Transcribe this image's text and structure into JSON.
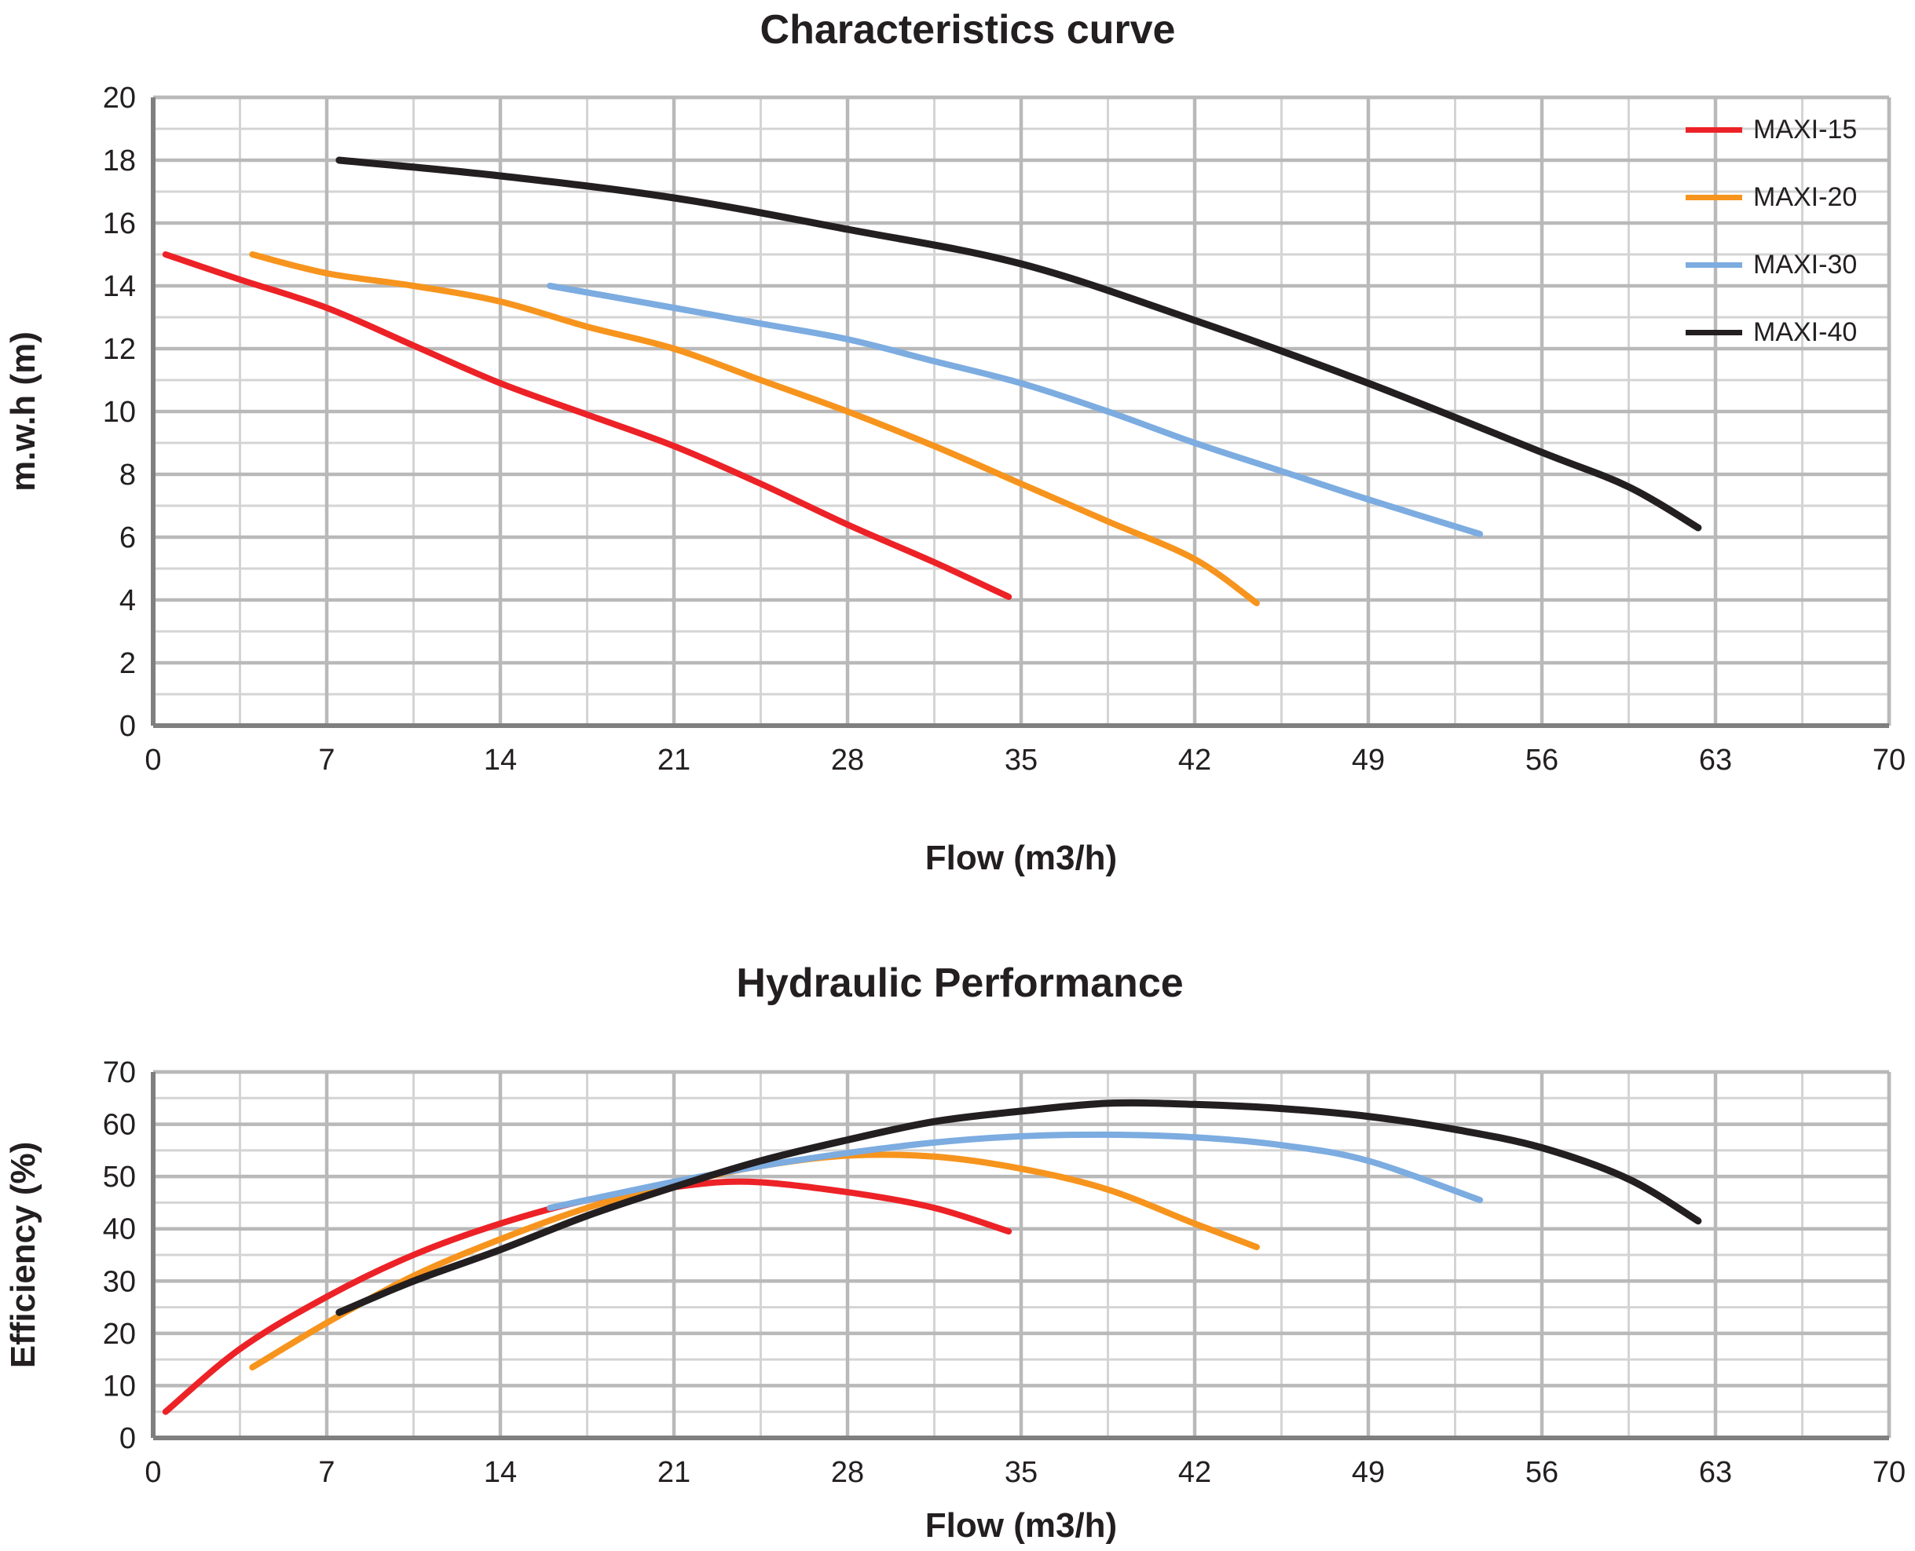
{
  "colors": {
    "background": "#ffffff",
    "grid_minor": "#d4d4d4",
    "grid_major": "#b9b9b9",
    "axis_line": "#7f7f7f",
    "text": "#231f20",
    "maxi15": "#ec2227",
    "maxi20": "#f7941d",
    "maxi30": "#7cace0",
    "maxi40": "#231f20"
  },
  "chart_data": [
    {
      "type": "line",
      "title": "Characteristics curve",
      "xlabel": "Flow (m3/h)",
      "ylabel": "m.w.h (m)",
      "xlim": [
        0,
        70
      ],
      "ylim": [
        0,
        20
      ],
      "x_tick_step": 7,
      "x_minor_step": 3.5,
      "y_tick_step": 2,
      "y_minor_step": 1,
      "grid": true,
      "legend_position": "top-right-inside",
      "legend_visible": true,
      "x_ticks": [
        0,
        7,
        14,
        21,
        28,
        35,
        42,
        49,
        56,
        63,
        70
      ],
      "y_ticks": [
        0,
        2,
        4,
        6,
        8,
        10,
        12,
        14,
        16,
        18,
        20
      ],
      "series": [
        {
          "name": "MAXI-15",
          "color": "#ec2227",
          "points": [
            [
              0.5,
              15.0
            ],
            [
              3.5,
              14.2
            ],
            [
              7,
              13.3
            ],
            [
              10.5,
              12.1
            ],
            [
              14,
              10.9
            ],
            [
              17.5,
              9.9
            ],
            [
              21,
              8.9
            ],
            [
              24.5,
              7.7
            ],
            [
              28,
              6.4
            ],
            [
              31.5,
              5.2
            ],
            [
              34.5,
              4.1
            ]
          ]
        },
        {
          "name": "MAXI-20",
          "color": "#f7941d",
          "points": [
            [
              4,
              15.0
            ],
            [
              7,
              14.4
            ],
            [
              10.5,
              14.0
            ],
            [
              14,
              13.5
            ],
            [
              17.5,
              12.7
            ],
            [
              21,
              12.0
            ],
            [
              24.5,
              11.0
            ],
            [
              28,
              10.0
            ],
            [
              31.5,
              8.9
            ],
            [
              35,
              7.7
            ],
            [
              38.5,
              6.5
            ],
            [
              42,
              5.3
            ],
            [
              44.5,
              3.9
            ]
          ]
        },
        {
          "name": "MAXI-30",
          "color": "#7cace0",
          "points": [
            [
              16,
              14.0
            ],
            [
              21,
              13.3
            ],
            [
              24.5,
              12.8
            ],
            [
              28,
              12.3
            ],
            [
              31.5,
              11.6
            ],
            [
              35,
              10.9
            ],
            [
              38.5,
              10.0
            ],
            [
              42,
              9.0
            ],
            [
              45.5,
              8.1
            ],
            [
              49,
              7.2
            ],
            [
              53.5,
              6.1
            ]
          ]
        },
        {
          "name": "MAXI-40",
          "color": "#231f20",
          "points": [
            [
              7.5,
              18.0
            ],
            [
              14,
              17.5
            ],
            [
              21,
              16.8
            ],
            [
              28,
              15.8
            ],
            [
              35,
              14.7
            ],
            [
              42,
              12.9
            ],
            [
              49,
              10.9
            ],
            [
              56,
              8.7
            ],
            [
              59.5,
              7.6
            ],
            [
              62.3,
              6.3
            ]
          ]
        }
      ]
    },
    {
      "type": "line",
      "title": "Hydraulic Performance",
      "xlabel": "Flow (m3/h)",
      "ylabel": "Efficiency (%)",
      "xlim": [
        0,
        70
      ],
      "ylim": [
        0,
        70
      ],
      "x_tick_step": 7,
      "x_minor_step": 3.5,
      "y_tick_step": 10,
      "y_minor_step": 5,
      "grid": true,
      "legend_visible": false,
      "x_ticks": [
        0,
        7,
        14,
        21,
        28,
        35,
        42,
        49,
        56,
        63,
        70
      ],
      "y_ticks": [
        0,
        10,
        20,
        30,
        40,
        50,
        60,
        70
      ],
      "series": [
        {
          "name": "MAXI-15",
          "color": "#ec2227",
          "points": [
            [
              0.5,
              5
            ],
            [
              3.5,
              17
            ],
            [
              7,
              27
            ],
            [
              10.5,
              35
            ],
            [
              14,
              41
            ],
            [
              17.5,
              45.5
            ],
            [
              21,
              48
            ],
            [
              24,
              49
            ],
            [
              28,
              47
            ],
            [
              31.5,
              44
            ],
            [
              34.5,
              39.5
            ]
          ]
        },
        {
          "name": "MAXI-20",
          "color": "#f7941d",
          "points": [
            [
              4,
              13.5
            ],
            [
              7,
              22
            ],
            [
              10.5,
              31
            ],
            [
              14,
              38
            ],
            [
              17.5,
              44
            ],
            [
              21,
              48.5
            ],
            [
              24.5,
              52
            ],
            [
              28,
              54
            ],
            [
              31.5,
              53.8
            ],
            [
              35,
              51.5
            ],
            [
              38.5,
              47.5
            ],
            [
              42,
              41
            ],
            [
              44.5,
              36.5
            ]
          ]
        },
        {
          "name": "MAXI-30",
          "color": "#7cace0",
          "points": [
            [
              16,
              44
            ],
            [
              21,
              49
            ],
            [
              24.5,
              52
            ],
            [
              28,
              54.5
            ],
            [
              31.5,
              56.5
            ],
            [
              35,
              57.7
            ],
            [
              38.5,
              58
            ],
            [
              42,
              57.5
            ],
            [
              45.5,
              56
            ],
            [
              49,
              53
            ],
            [
              53.5,
              45.5
            ]
          ]
        },
        {
          "name": "MAXI-40",
          "color": "#231f20",
          "points": [
            [
              7.5,
              24
            ],
            [
              10.5,
              30
            ],
            [
              14,
              36
            ],
            [
              17.5,
              42.5
            ],
            [
              21,
              48
            ],
            [
              24.5,
              53
            ],
            [
              28,
              57
            ],
            [
              31.5,
              60.5
            ],
            [
              35,
              62.5
            ],
            [
              38.5,
              64
            ],
            [
              42,
              63.8
            ],
            [
              45.5,
              63
            ],
            [
              49,
              61.5
            ],
            [
              52.5,
              59
            ],
            [
              56,
              55.5
            ],
            [
              59.5,
              49.5
            ],
            [
              62.3,
              41.5
            ]
          ]
        }
      ]
    }
  ]
}
